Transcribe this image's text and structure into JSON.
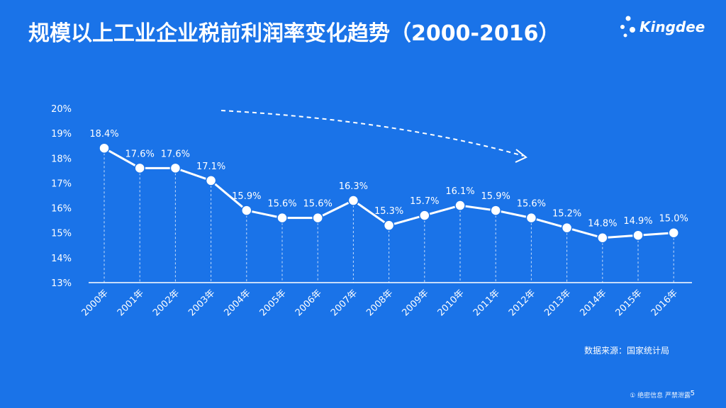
{
  "header": {
    "title": "规模以上工业企业税前利润率变化趋势（2000-2016）",
    "logo_text": "Kingdee"
  },
  "chart_data": {
    "type": "line",
    "categories": [
      "2000年",
      "2001年",
      "2002年",
      "2003年",
      "2004年",
      "2005年",
      "2006年",
      "2007年",
      "2008年",
      "2009年",
      "2010年",
      "2011年",
      "2012年",
      "2013年",
      "2014年",
      "2015年",
      "2016年"
    ],
    "values": [
      18.4,
      17.6,
      17.6,
      17.1,
      15.9,
      15.6,
      15.6,
      16.3,
      15.3,
      15.7,
      16.1,
      15.9,
      15.6,
      15.2,
      14.8,
      14.9,
      15.0
    ],
    "data_labels": [
      "18.4%",
      "17.6%",
      "17.6%",
      "17.1%",
      "15.9%",
      "15.6%",
      "15.6%",
      "16.3%",
      "15.3%",
      "15.7%",
      "16.1%",
      "15.9%",
      "15.6%",
      "15.2%",
      "14.8%",
      "14.9%",
      "15.0%"
    ],
    "y_ticks": [
      "13%",
      "14%",
      "15%",
      "16%",
      "17%",
      "18%",
      "19%",
      "20%"
    ],
    "ylim": [
      13,
      20
    ],
    "grid": false,
    "trend_arrow": "downward dashed arrow"
  },
  "footer": {
    "source": "数据来源：国家统计局",
    "confidential": "① 绝密信息 严禁泄露",
    "page": "5"
  },
  "colors": {
    "background": "#1a73e8",
    "foreground": "#ffffff"
  }
}
